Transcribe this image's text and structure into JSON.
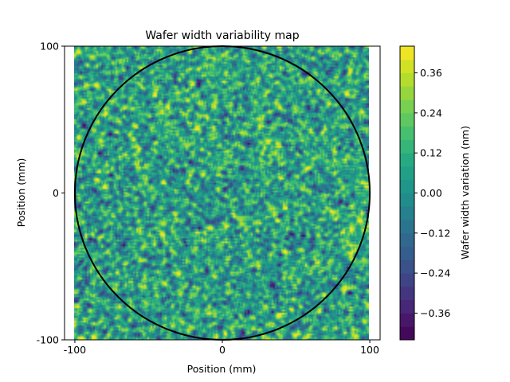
{
  "chart_data": {
    "type": "heatmap",
    "title": "Wafer width variability map",
    "xlabel": "Position (mm)",
    "ylabel": "Position (mm)",
    "xlim": [
      -107,
      107
    ],
    "ylim": [
      -100,
      100
    ],
    "data_extent": {
      "x": [
        -100,
        100
      ],
      "y": [
        -100,
        100
      ]
    },
    "xticks": [
      -100,
      0,
      100
    ],
    "xtick_labels": [
      "-100",
      "0",
      "100"
    ],
    "yticks": [
      -100,
      0,
      100
    ],
    "ytick_labels": [
      "-100",
      "0",
      "100"
    ],
    "field": {
      "description": "spatially correlated random noise",
      "mean": 0.0,
      "std": 0.15,
      "seed": 7
    },
    "overlay_circle": {
      "center": [
        0,
        0
      ],
      "radius": 100,
      "color": "#000000"
    },
    "colormap": "viridis",
    "colorbar": {
      "label": "Wafer width variation (nm)",
      "range": [
        -0.44,
        0.44
      ],
      "level_step": 0.04,
      "ticks": [
        -0.36,
        -0.24,
        -0.12,
        0.0,
        0.12,
        0.24,
        0.36
      ],
      "tick_labels": [
        "−0.36",
        "−0.24",
        "−0.12",
        "0.00",
        "0.12",
        "0.24",
        "0.36"
      ]
    },
    "grid": false
  }
}
